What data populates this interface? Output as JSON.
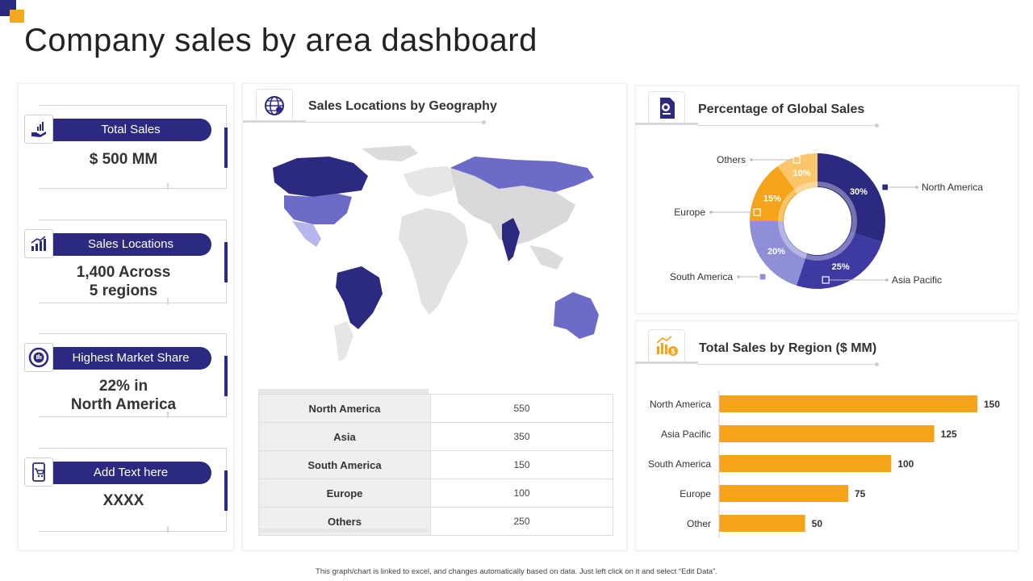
{
  "page": {
    "title": "Company sales by area dashboard",
    "footnote": "This graph/chart is linked to excel, and changes automatically based on data. Just left click on it and select “Edit Data”."
  },
  "kpis": [
    {
      "label": "Total Sales",
      "value_line1": "$ 500 MM",
      "value_line2": "",
      "icon": "sales-hand-icon"
    },
    {
      "label": "Sales Locations",
      "value_line1": "1,400 Across",
      "value_line2": "5 regions",
      "icon": "growth-chart-icon"
    },
    {
      "label": "Highest Market Share",
      "value_line1": "22% in",
      "value_line2": "North America",
      "icon": "target-icon"
    },
    {
      "label": "Add Text here",
      "value_line1": "XXXX",
      "value_line2": "",
      "icon": "cart-phone-icon"
    }
  ],
  "geo_panel": {
    "title": "Sales Locations by Geography",
    "icon": "globe-pin-icon",
    "table": [
      {
        "region": "North America",
        "value": "550"
      },
      {
        "region": "Asia",
        "value": "350"
      },
      {
        "region": "South America",
        "value": "150"
      },
      {
        "region": "Europe",
        "value": "100"
      },
      {
        "region": "Others",
        "value": "250"
      }
    ]
  },
  "global_panel": {
    "title": "Percentage of Global  Sales",
    "icon": "document-globe-icon"
  },
  "region_panel": {
    "title": "Total Sales by Region ($ MM)",
    "icon": "money-chart-icon"
  },
  "colors": {
    "navy": "#2b2a80",
    "indigo": "#3f3aa1",
    "lavender": "#8f8fd8",
    "orange": "#f5a31a",
    "light_orange": "#fbc56a",
    "map_highlight": "#6c6cc8",
    "map_gray": "#dcdcdc"
  },
  "chart_data": [
    {
      "type": "pie",
      "title": "Percentage of Global  Sales",
      "slices": [
        {
          "label": "North America",
          "value": 30,
          "display": "30%",
          "color": "#2b2a80"
        },
        {
          "label": "Asia Pacific",
          "value": 25,
          "display": "25%",
          "color": "#3f3aa1"
        },
        {
          "label": "South America",
          "value": 20,
          "display": "20%",
          "color": "#8f8fd8"
        },
        {
          "label": "Europe",
          "value": 15,
          "display": "15%",
          "color": "#f5a31a"
        },
        {
          "label": "Others",
          "value": 10,
          "display": "10%",
          "color": "#fbc56a"
        }
      ]
    },
    {
      "type": "bar",
      "title": "Total Sales by Region ($ MM)",
      "orientation": "horizontal",
      "categories": [
        "North America",
        "Asia Pacific",
        "South America",
        "Europe",
        "Other"
      ],
      "values": [
        150,
        125,
        100,
        75,
        50
      ],
      "color": "#f5a31a",
      "xlim": [
        0,
        150
      ]
    }
  ]
}
